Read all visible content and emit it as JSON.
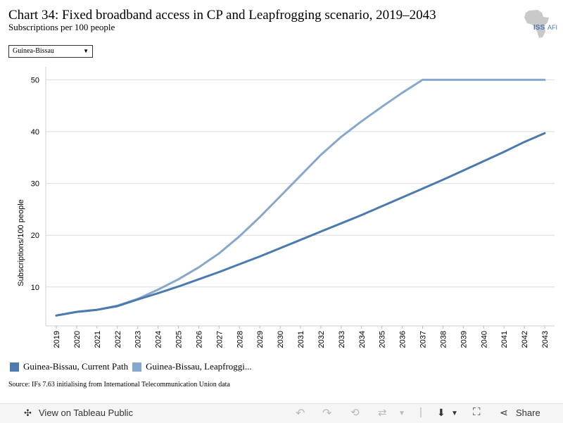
{
  "header": {
    "title": "Chart 34: Fixed broadband access in CP and Leapfrogging scenario, 2019–2043",
    "subtitle": "Subscriptions per 100 people",
    "logo_text_iss": "ISS",
    "logo_text_afi": "AFI"
  },
  "filter": {
    "selected": "Guinea-Bissau"
  },
  "chart_data": {
    "type": "line",
    "ylabel": "Subscriptions/100 people",
    "xlabel": "",
    "x": [
      2019,
      2020,
      2021,
      2022,
      2023,
      2024,
      2025,
      2026,
      2027,
      2028,
      2029,
      2030,
      2031,
      2032,
      2033,
      2034,
      2035,
      2036,
      2037,
      2038,
      2039,
      2040,
      2041,
      2042,
      2043
    ],
    "ylim": [
      2.5,
      52.5
    ],
    "yticks": [
      10,
      20,
      30,
      40,
      50
    ],
    "grid": true,
    "legend_position": "bottom",
    "series": [
      {
        "name": "Guinea-Bissau, Current Path",
        "color": "#4a7ab0",
        "values": [
          4.5,
          5.2,
          5.6,
          6.3,
          7.6,
          8.8,
          10.1,
          11.5,
          12.9,
          14.4,
          15.9,
          17.5,
          19.1,
          20.7,
          22.3,
          23.9,
          25.6,
          27.3,
          29.0,
          30.7,
          32.5,
          34.3,
          36.1,
          38.0,
          39.7
        ]
      },
      {
        "name": "Guinea-Bissau, Leapfrogging scenario",
        "legend_label": "Guinea-Bissau, Leapfroggi...",
        "color": "#87a8cc",
        "values": [
          4.5,
          5.2,
          5.6,
          6.4,
          7.7,
          9.5,
          11.5,
          13.8,
          16.5,
          19.8,
          23.5,
          27.5,
          31.5,
          35.5,
          39.0,
          42.0,
          44.8,
          47.5,
          50.0,
          50.0,
          50.0,
          50.0,
          50.0,
          50.0,
          50.0
        ]
      }
    ]
  },
  "footer": {
    "source": "Source: IFs 7.63 initialising from International Telecommunication Union data"
  },
  "toolbar": {
    "view_label": "View on Tableau Public",
    "share_label": "Share"
  }
}
